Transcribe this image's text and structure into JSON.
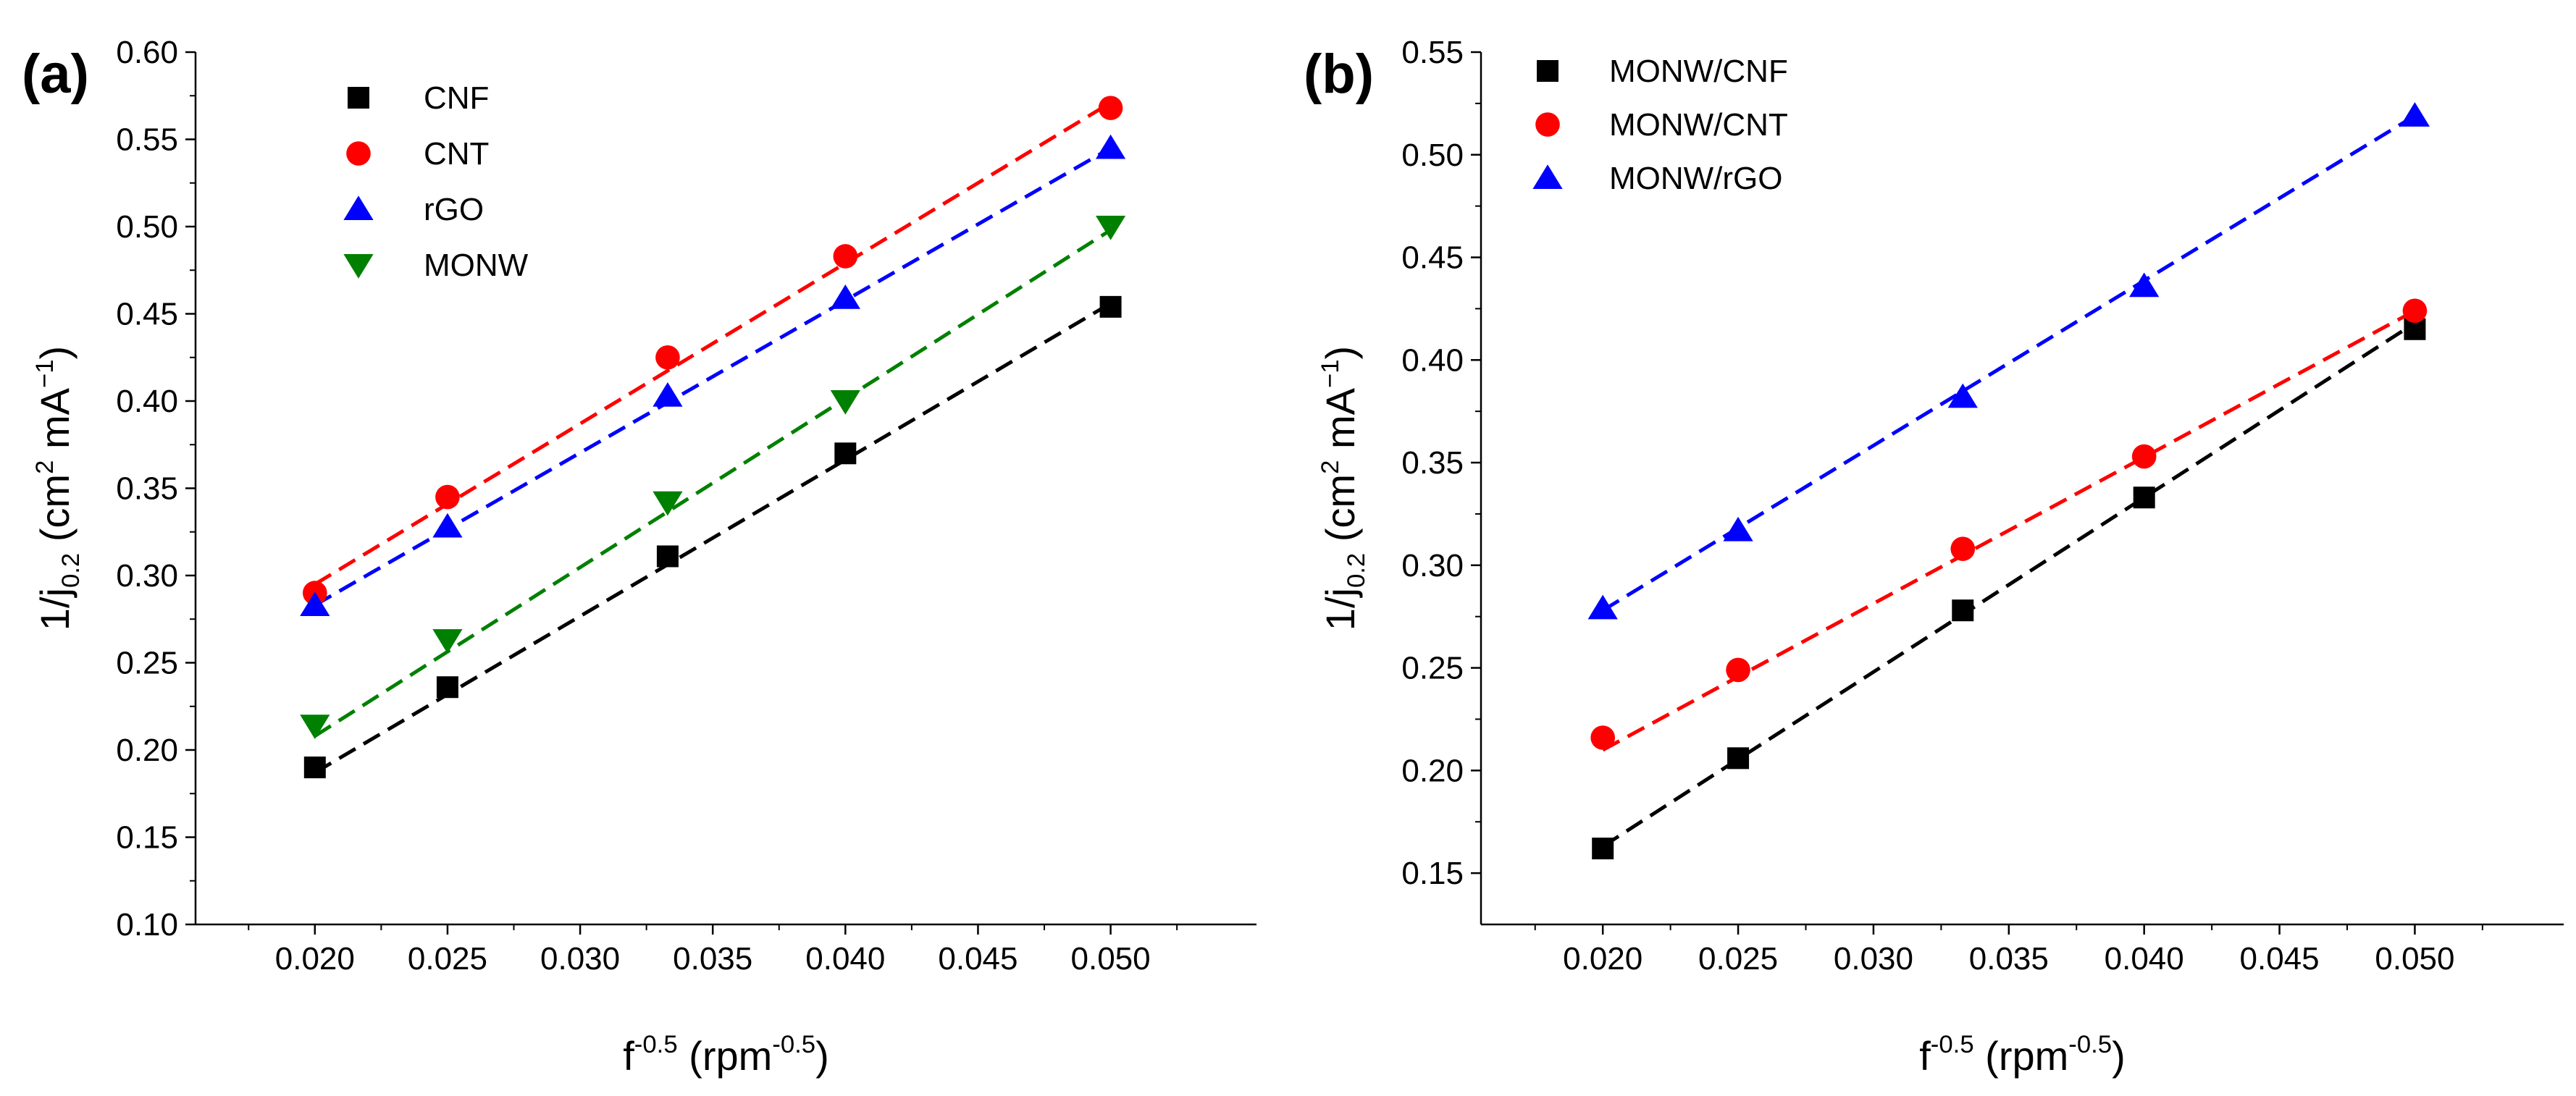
{
  "chart_data": [
    {
      "panel_label": "(a)",
      "type": "scatter",
      "title": "",
      "xlabel": {
        "base": "f",
        "sup": "-0.5",
        "rest": " (rpm",
        "sup2": "-0.5",
        "end": ")"
      },
      "ylabel": {
        "pre": "1/j",
        "sub": "0.2",
        "mid": " (cm",
        "sup": "2",
        "mid2": " mA",
        "sup2": "−1",
        "end": ")"
      },
      "xlim": [
        0.0155,
        0.0555
      ],
      "ylim": [
        0.1,
        0.6
      ],
      "xticks": [
        "0.020",
        "0.025",
        "0.030",
        "0.035",
        "0.040",
        "0.045",
        "0.050"
      ],
      "xtick_values": [
        0.02,
        0.025,
        0.03,
        0.035,
        0.04,
        0.045,
        0.05
      ],
      "yticks": [
        "0.10",
        "0.15",
        "0.20",
        "0.25",
        "0.30",
        "0.35",
        "0.40",
        "0.45",
        "0.50",
        "0.55",
        "0.60"
      ],
      "ytick_values": [
        0.1,
        0.15,
        0.2,
        0.25,
        0.3,
        0.35,
        0.4,
        0.45,
        0.5,
        0.55,
        0.6
      ],
      "x": [
        0.02,
        0.025,
        0.0333,
        0.04,
        0.05
      ],
      "legend_position": "top-left",
      "series": [
        {
          "name": "CNF",
          "marker": "square",
          "color": "#000000",
          "line_color": "#000000",
          "values": [
            0.19,
            0.236,
            0.311,
            0.37,
            0.454
          ],
          "fit": [
            0.187,
            0.456
          ]
        },
        {
          "name": "CNT",
          "marker": "circle",
          "color": "#ff0000",
          "line_color": "#ff0000",
          "values": [
            0.29,
            0.345,
            0.425,
            0.483,
            0.568
          ],
          "fit": [
            0.295,
            0.571
          ]
        },
        {
          "name": "rGO",
          "marker": "triangle-up",
          "color": "#0000ff",
          "line_color": "#0000ff",
          "values": [
            0.283,
            0.328,
            0.403,
            0.459,
            0.545
          ],
          "fit": [
            0.283,
            0.545
          ]
        },
        {
          "name": "MONW",
          "marker": "triangle-down",
          "color": "#008000",
          "line_color": "#008000",
          "values": [
            0.214,
            0.263,
            0.342,
            0.4,
            0.5
          ],
          "fit": [
            0.208,
            0.498
          ]
        }
      ]
    },
    {
      "panel_label": "(b)",
      "type": "scatter",
      "title": "",
      "xlabel": {
        "base": "f",
        "sup": "-0.5",
        "rest": " (rpm",
        "sup2": "-0.5",
        "end": ")"
      },
      "ylabel": {
        "pre": "1/j",
        "sub": "0.2",
        "mid": " (cm",
        "sup": "2",
        "mid2": " mA",
        "sup2": "−1",
        "end": ")"
      },
      "xlim": [
        0.0155,
        0.0555
      ],
      "ylim": [
        0.125,
        0.55
      ],
      "xticks": [
        "0.020",
        "0.025",
        "0.030",
        "0.035",
        "0.040",
        "0.045",
        "0.050"
      ],
      "xtick_values": [
        0.02,
        0.025,
        0.03,
        0.035,
        0.04,
        0.045,
        0.05
      ],
      "yticks": [
        "0.15",
        "0.20",
        "0.25",
        "0.30",
        "0.35",
        "0.40",
        "0.45",
        "0.50",
        "0.55"
      ],
      "ytick_values": [
        0.15,
        0.2,
        0.25,
        0.3,
        0.35,
        0.4,
        0.45,
        0.5,
        0.55
      ],
      "x": [
        0.02,
        0.025,
        0.0333,
        0.04,
        0.05
      ],
      "legend_position": "top-left",
      "series": [
        {
          "name": "MONW/CNF",
          "marker": "square",
          "color": "#000000",
          "line_color": "#000000",
          "values": [
            0.162,
            0.206,
            0.278,
            0.333,
            0.415
          ],
          "fit": [
            0.163,
            0.418
          ]
        },
        {
          "name": "MONW/CNT",
          "marker": "circle",
          "color": "#ff0000",
          "line_color": "#ff0000",
          "values": [
            0.216,
            0.249,
            0.308,
            0.353,
            0.424
          ],
          "fit": [
            0.21,
            0.424
          ]
        },
        {
          "name": "MONW/rGO",
          "marker": "triangle-up",
          "color": "#0000ff",
          "line_color": "#0000ff",
          "values": [
            0.279,
            0.317,
            0.382,
            0.436,
            0.519
          ],
          "fit": [
            0.278,
            0.519
          ]
        }
      ]
    }
  ]
}
